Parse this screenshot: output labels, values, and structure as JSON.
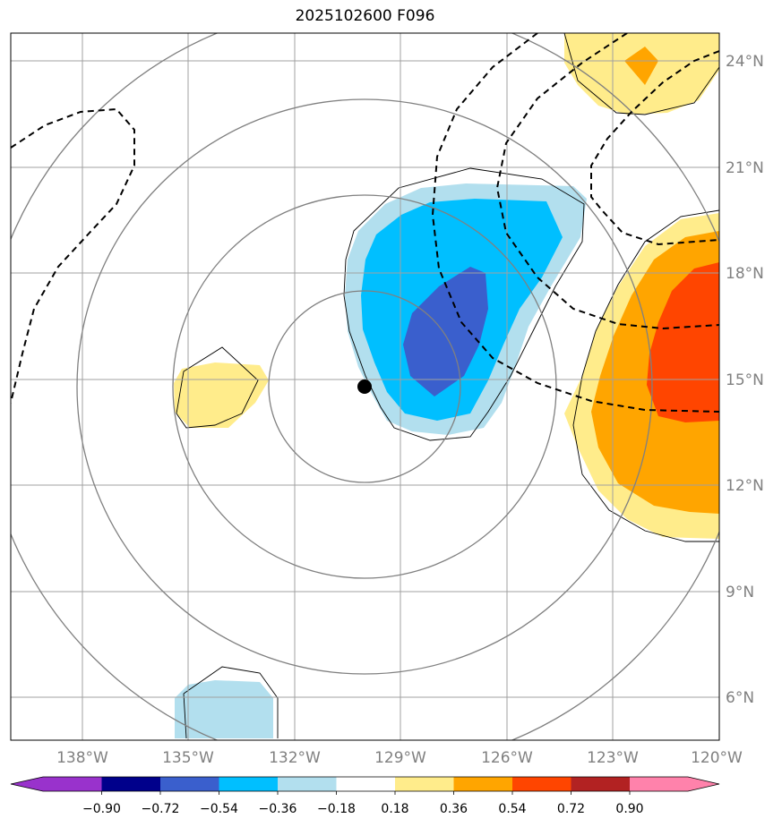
{
  "title": "2025102600 F096",
  "map": {
    "lon_range": [
      -140,
      -120
    ],
    "lat_range": [
      5,
      25
    ],
    "lon_ticks": [
      "138°W",
      "135°W",
      "132°W",
      "129°W",
      "126°W",
      "123°W",
      "120°W"
    ],
    "lat_ticks": [
      "6°N",
      "9°N",
      "12°N",
      "15°N",
      "18°N",
      "21°N",
      "24°N"
    ],
    "center_marker": {
      "lon": -130,
      "lat": 14.8
    },
    "range_rings_color": "#808080",
    "grid_color": "#a0a0a0"
  },
  "colorbar": {
    "labels": [
      "−0.90",
      "−0.72",
      "−0.54",
      "−0.36",
      "−0.18",
      "0.18",
      "0.36",
      "0.54",
      "0.72",
      "0.90"
    ],
    "colors": [
      "#9932cc",
      "#00008b",
      "#3a5fcd",
      "#00bfff",
      "#b2dfee",
      "#ffffff",
      "#ffec8b",
      "#ffa500",
      "#ff4500",
      "#b22222",
      "#ff82ab"
    ]
  }
}
